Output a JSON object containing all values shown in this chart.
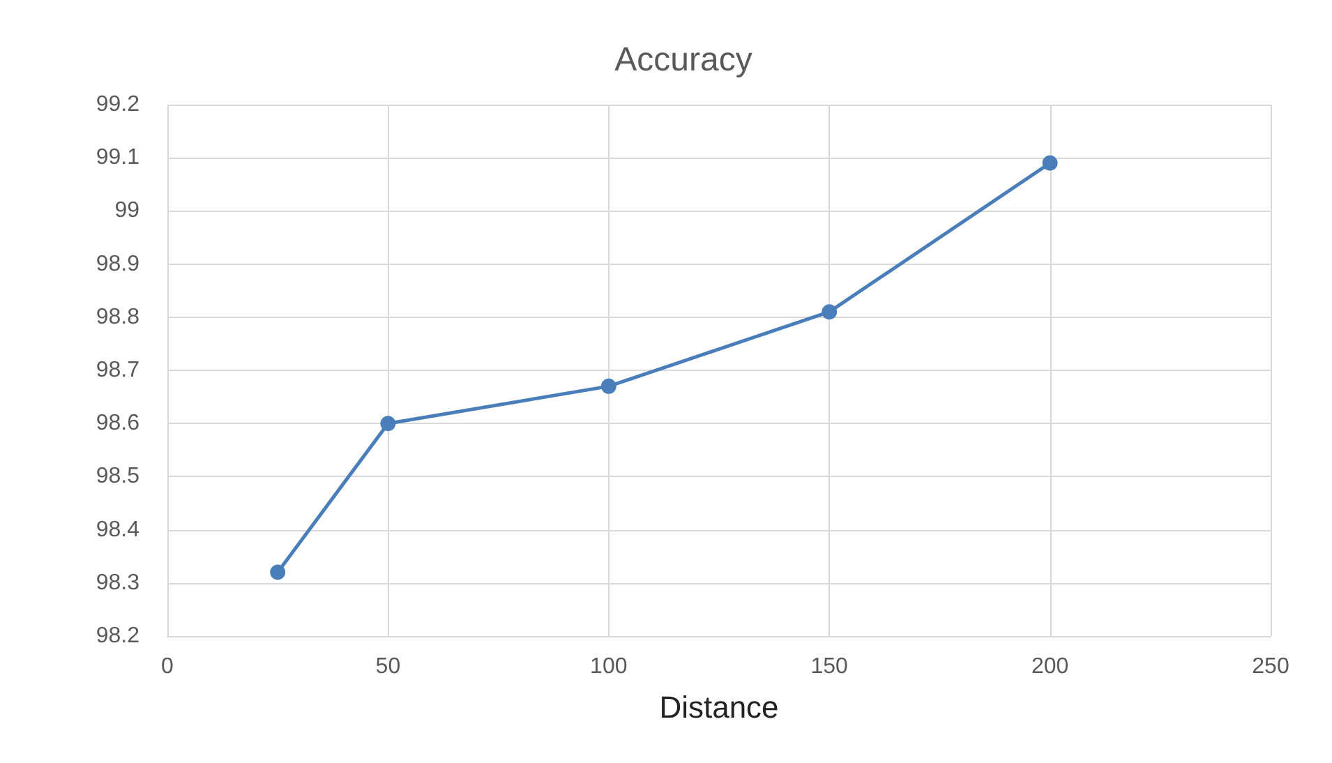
{
  "chart_data": {
    "type": "line",
    "title": "Accuracy",
    "xlabel": "Distance",
    "x": [
      25,
      50,
      100,
      150,
      200
    ],
    "series": [
      {
        "color": "#4a7ebb",
        "values": [
          98.32,
          98.6,
          98.67,
          98.81,
          99.09
        ]
      }
    ],
    "xlim": [
      0,
      250
    ],
    "xticks": [
      0,
      50,
      100,
      150,
      200,
      250
    ],
    "ylim": [
      98.2,
      99.2
    ],
    "yticks": [
      98.2,
      98.3,
      98.4,
      98.5,
      98.6,
      98.7,
      98.8,
      98.9,
      99,
      99.1,
      99.2
    ],
    "grid": true,
    "marker": "circle",
    "line_style": "solid"
  }
}
